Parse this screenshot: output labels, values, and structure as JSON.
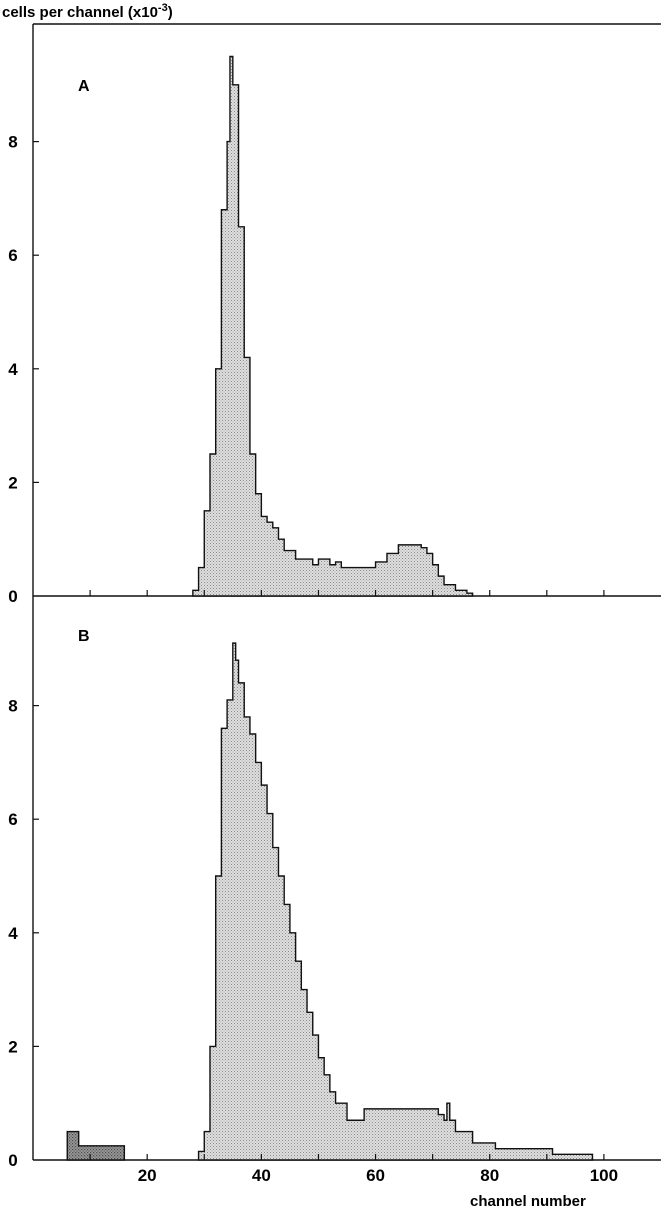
{
  "chart_data": {
    "type": "histogram",
    "ylabel": "cells per channel (x10",
    "ylabel_exp": "-3",
    "ylabel_close": ")",
    "xlabel": "channel number",
    "x_ticks": [
      20,
      40,
      60,
      80,
      100
    ],
    "y_ticks": [
      0,
      2,
      4,
      6,
      8
    ],
    "xlim": [
      0,
      110
    ],
    "ylim": [
      0,
      9.9
    ],
    "fill_color": "#d0d0d0",
    "dark_fill_color": "#8a8a8a",
    "line_color": "#111111",
    "panels": [
      {
        "label": "A",
        "steps": [
          [
            28,
            0.1
          ],
          [
            29,
            0.5
          ],
          [
            30,
            1.5
          ],
          [
            31,
            2.5
          ],
          [
            32,
            4.0
          ],
          [
            33,
            6.8
          ],
          [
            34,
            8.0
          ],
          [
            34.5,
            9.5
          ],
          [
            35,
            9.0
          ],
          [
            36,
            6.5
          ],
          [
            37,
            4.2
          ],
          [
            38,
            2.5
          ],
          [
            39,
            1.8
          ],
          [
            40,
            1.4
          ],
          [
            41,
            1.3
          ],
          [
            42,
            1.2
          ],
          [
            43,
            1.0
          ],
          [
            44,
            0.8
          ],
          [
            46,
            0.65
          ],
          [
            49,
            0.55
          ],
          [
            50,
            0.65
          ],
          [
            52,
            0.55
          ],
          [
            53,
            0.6
          ],
          [
            54,
            0.5
          ],
          [
            56,
            0.5
          ],
          [
            58,
            0.5
          ],
          [
            60,
            0.6
          ],
          [
            62,
            0.75
          ],
          [
            64,
            0.9
          ],
          [
            68,
            0.85
          ],
          [
            69,
            0.75
          ],
          [
            70,
            0.55
          ],
          [
            71,
            0.35
          ],
          [
            72,
            0.2
          ],
          [
            74,
            0.1
          ],
          [
            76,
            0.05
          ],
          [
            77,
            0.0
          ]
        ]
      },
      {
        "label": "B",
        "steps": [
          [
            29,
            0.15
          ],
          [
            30,
            0.5
          ],
          [
            31,
            2.0
          ],
          [
            32,
            5.0
          ],
          [
            33,
            7.6
          ],
          [
            34,
            8.1
          ],
          [
            35,
            9.1
          ],
          [
            35.5,
            8.8
          ],
          [
            36,
            8.4
          ],
          [
            37,
            7.8
          ],
          [
            38,
            7.5
          ],
          [
            39,
            7.0
          ],
          [
            40,
            6.6
          ],
          [
            41,
            6.1
          ],
          [
            42,
            5.5
          ],
          [
            43,
            5.0
          ],
          [
            44,
            4.5
          ],
          [
            45,
            4.0
          ],
          [
            46,
            3.5
          ],
          [
            47,
            3.0
          ],
          [
            48,
            2.6
          ],
          [
            49,
            2.2
          ],
          [
            50,
            1.8
          ],
          [
            51,
            1.5
          ],
          [
            52,
            1.2
          ],
          [
            53,
            1.0
          ],
          [
            55,
            0.7
          ],
          [
            58,
            0.9
          ],
          [
            71,
            0.8
          ],
          [
            72,
            0.7
          ],
          [
            72.5,
            1.0
          ],
          [
            73,
            0.7
          ],
          [
            74,
            0.5
          ],
          [
            77,
            0.3
          ],
          [
            81,
            0.2
          ],
          [
            91,
            0.1
          ],
          [
            98,
            0.0
          ]
        ],
        "dark_steps": [
          [
            6,
            0.5
          ],
          [
            8,
            0.25
          ],
          [
            16,
            0.0
          ]
        ]
      }
    ]
  }
}
